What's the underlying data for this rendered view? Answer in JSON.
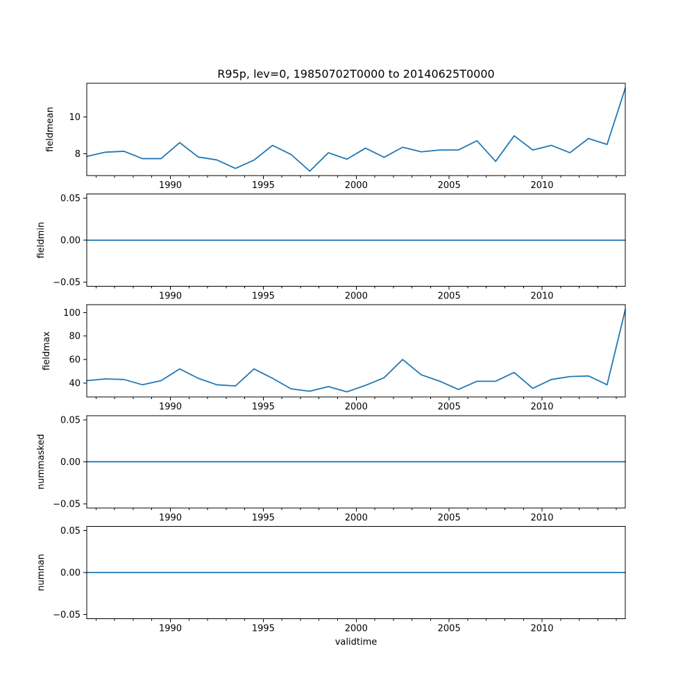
{
  "figure": {
    "title": "R95p, lev=0, 19850702T0000 to 20140625T0000",
    "xlabel": "validtime",
    "background": "#ffffff",
    "line_color": "#1f77b4",
    "text_color": "#000000"
  },
  "chart_data": [
    {
      "type": "line",
      "name": "fieldmean",
      "ylabel": "fieldmean",
      "x": [
        1985.5,
        1986.5,
        1987.5,
        1988.5,
        1989.5,
        1990.5,
        1991.5,
        1992.5,
        1993.5,
        1994.5,
        1995.5,
        1996.5,
        1997.5,
        1998.5,
        1999.5,
        2000.5,
        2001.5,
        2002.5,
        2003.5,
        2004.5,
        2005.5,
        2006.5,
        2007.5,
        2008.5,
        2009.5,
        2010.5,
        2011.5,
        2012.5,
        2013.5,
        2014.48
      ],
      "values": [
        7.85,
        8.08,
        8.13,
        7.73,
        7.73,
        8.6,
        7.82,
        7.66,
        7.2,
        7.65,
        8.45,
        7.95,
        7.05,
        8.05,
        7.7,
        8.3,
        7.8,
        8.35,
        8.1,
        8.2,
        8.2,
        8.7,
        7.58,
        8.97,
        8.2,
        8.45,
        8.05,
        8.82,
        8.5,
        11.56
      ],
      "ylim": [
        6.81,
        11.82
      ],
      "ytick_values": [
        8,
        10
      ],
      "ytick_labels": [
        "8",
        "10"
      ],
      "grid": false,
      "legend": "none"
    },
    {
      "type": "line",
      "name": "fieldmin",
      "ylabel": "fieldmin",
      "x": [
        1985.5,
        2014.48
      ],
      "values": [
        0,
        0
      ],
      "ylim": [
        -0.055,
        0.055
      ],
      "ytick_values": [
        0.05,
        0.0,
        -0.05
      ],
      "ytick_labels": [
        "0.05",
        "0.00",
        "−0.05"
      ],
      "grid": false,
      "legend": "none"
    },
    {
      "type": "line",
      "name": "fieldmax",
      "ylabel": "fieldmax",
      "x": [
        1985.5,
        1986.5,
        1987.5,
        1988.5,
        1989.5,
        1990.5,
        1991.5,
        1992.5,
        1993.5,
        1994.5,
        1995.5,
        1996.5,
        1997.5,
        1998.5,
        1999.5,
        2000.5,
        2001.5,
        2002.5,
        2003.5,
        2004.5,
        2005.5,
        2006.5,
        2007.5,
        2008.5,
        2009.5,
        2010.5,
        2011.5,
        2012.5,
        2013.5,
        2014.48
      ],
      "values": [
        42,
        43.5,
        43,
        38.5,
        42,
        52,
        44,
        38.5,
        37.5,
        52,
        44,
        35,
        33,
        37,
        32.5,
        38,
        44.5,
        60,
        47,
        41.5,
        34.5,
        41.5,
        41.5,
        49,
        35.5,
        43,
        45.5,
        46,
        38.5,
        102.5
      ],
      "ylim": [
        28,
        106.6
      ],
      "ytick_values": [
        40,
        60,
        80,
        100
      ],
      "ytick_labels": [
        "40",
        "60",
        "80",
        "100"
      ],
      "grid": false,
      "legend": "none"
    },
    {
      "type": "line",
      "name": "nummasked",
      "ylabel": "nummasked",
      "x": [
        1985.5,
        2014.48
      ],
      "values": [
        0,
        0
      ],
      "ylim": [
        -0.055,
        0.055
      ],
      "ytick_values": [
        0.05,
        0.0,
        -0.05
      ],
      "ytick_labels": [
        "0.05",
        "0.00",
        "−0.05"
      ],
      "grid": false,
      "legend": "none"
    },
    {
      "type": "line",
      "name": "numnan",
      "ylabel": "numnan",
      "x": [
        1985.5,
        2014.48
      ],
      "values": [
        0,
        0
      ],
      "ylim": [
        -0.055,
        0.055
      ],
      "ytick_values": [
        0.05,
        0.0,
        -0.05
      ],
      "ytick_labels": [
        "0.05",
        "0.00",
        "−0.05"
      ],
      "grid": false,
      "legend": "none"
    }
  ],
  "x_axis": {
    "xlim": [
      1985.5,
      2014.48
    ],
    "xtick_values": [
      1990,
      1995,
      2000,
      2005,
      2010
    ],
    "xtick_labels": [
      "1990",
      "1995",
      "2000",
      "2005",
      "2010"
    ],
    "minor_tick_start": 1986,
    "minor_tick_end": 2014,
    "minor_tick_step": 1
  }
}
